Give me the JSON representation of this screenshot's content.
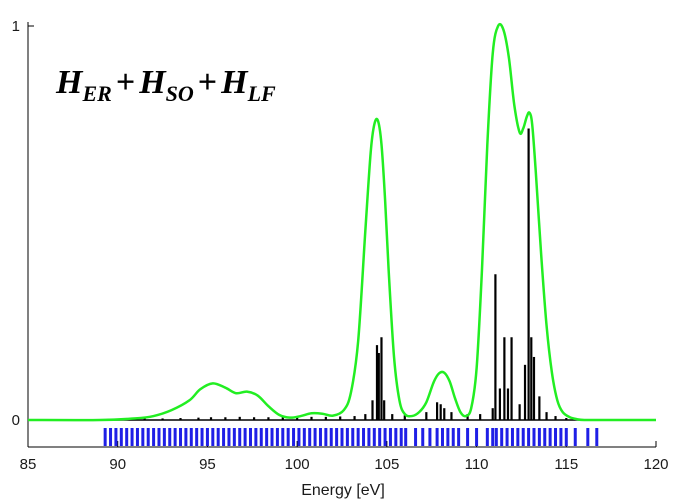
{
  "chart_data": {
    "type": "line",
    "title": "",
    "xlabel": "Energy [eV]",
    "ylabel": "",
    "xlim": [
      85,
      120
    ],
    "ylim": [
      0,
      1
    ],
    "xticks": [
      85,
      90,
      95,
      100,
      105,
      110,
      115,
      120
    ],
    "yticks": [
      0,
      1
    ],
    "grid": false,
    "annotation": {
      "terms": [
        {
          "main": "H",
          "sub": "ER"
        },
        {
          "main": "H",
          "sub": "SO"
        },
        {
          "main": "H",
          "sub": "LF"
        }
      ],
      "operator": "+"
    },
    "series": [
      {
        "kind": "envelope",
        "color": "#22ee22",
        "x": [
          85,
          89,
          91,
          92,
          93,
          94,
          94.6,
          95.3,
          96.0,
          96.6,
          97.2,
          97.8,
          98.4,
          99.0,
          99.6,
          100.2,
          100.8,
          101.4,
          102.0,
          102.6,
          103.0,
          103.4,
          103.8,
          104.1,
          104.3,
          104.5,
          104.7,
          104.9,
          105.1,
          105.4,
          105.7,
          106.0,
          106.4,
          106.8,
          107.2,
          107.6,
          107.9,
          108.2,
          108.5,
          108.8,
          109.1,
          109.4,
          109.7,
          110.0,
          110.3,
          110.6,
          110.9,
          111.2,
          111.5,
          111.8,
          112.1,
          112.4,
          112.6,
          112.8,
          112.95,
          113.1,
          113.3,
          113.6,
          113.9,
          114.2,
          114.5,
          114.8,
          115.2,
          115.6,
          116.0,
          117,
          120
        ],
        "y": [
          0.0,
          0.0,
          0.004,
          0.01,
          0.025,
          0.05,
          0.078,
          0.093,
          0.082,
          0.068,
          0.072,
          0.062,
          0.035,
          0.013,
          0.006,
          0.01,
          0.017,
          0.016,
          0.011,
          0.025,
          0.07,
          0.2,
          0.48,
          0.68,
          0.75,
          0.76,
          0.7,
          0.56,
          0.38,
          0.16,
          0.05,
          0.015,
          0.01,
          0.02,
          0.045,
          0.095,
          0.118,
          0.12,
          0.098,
          0.055,
          0.02,
          0.01,
          0.03,
          0.13,
          0.38,
          0.7,
          0.93,
          1.0,
          0.99,
          0.92,
          0.8,
          0.73,
          0.74,
          0.77,
          0.78,
          0.75,
          0.63,
          0.42,
          0.24,
          0.12,
          0.05,
          0.02,
          0.007,
          0.002,
          0.0,
          0.0,
          0.0
        ]
      },
      {
        "kind": "sticks",
        "color": "#000000",
        "x": [
          89.5,
          90.5,
          91.5,
          92.5,
          93.5,
          94.5,
          95.2,
          96.0,
          96.8,
          97.6,
          98.4,
          99.2,
          100.0,
          100.8,
          101.6,
          102.4,
          103.2,
          103.8,
          104.2,
          104.45,
          104.55,
          104.7,
          104.85,
          105.3,
          106.0,
          107.2,
          107.8,
          108.0,
          108.2,
          108.6,
          109.5,
          110.2,
          110.9,
          111.05,
          111.3,
          111.55,
          111.75,
          111.95,
          112.4,
          112.7,
          112.9,
          113.05,
          113.2,
          113.5,
          113.9,
          114.4,
          115.0
        ],
        "y": [
          0.003,
          0.003,
          0.004,
          0.004,
          0.005,
          0.006,
          0.007,
          0.007,
          0.008,
          0.007,
          0.007,
          0.007,
          0.008,
          0.008,
          0.008,
          0.009,
          0.01,
          0.015,
          0.05,
          0.19,
          0.17,
          0.21,
          0.05,
          0.015,
          0.012,
          0.02,
          0.045,
          0.04,
          0.03,
          0.02,
          0.015,
          0.015,
          0.03,
          0.37,
          0.08,
          0.21,
          0.08,
          0.21,
          0.04,
          0.14,
          0.74,
          0.21,
          0.16,
          0.06,
          0.02,
          0.01,
          0.005
        ]
      },
      {
        "kind": "rug",
        "color": "#1f1fe6",
        "x": [
          89.3,
          89.6,
          89.9,
          90.2,
          90.5,
          90.8,
          91.1,
          91.4,
          91.7,
          92.0,
          92.3,
          92.6,
          92.9,
          93.2,
          93.5,
          93.8,
          94.1,
          94.4,
          94.7,
          95.0,
          95.3,
          95.6,
          95.9,
          96.2,
          96.5,
          96.8,
          97.1,
          97.4,
          97.7,
          98.0,
          98.3,
          98.6,
          98.9,
          99.2,
          99.5,
          99.8,
          100.1,
          100.4,
          100.7,
          101.0,
          101.3,
          101.6,
          101.9,
          102.2,
          102.5,
          102.8,
          103.1,
          103.4,
          103.7,
          104.0,
          104.3,
          104.6,
          104.9,
          105.2,
          105.5,
          105.8,
          106.05,
          106.6,
          107.0,
          107.4,
          107.8,
          108.1,
          108.4,
          108.7,
          109.0,
          109.5,
          110.0,
          110.6,
          110.9,
          111.1,
          111.4,
          111.7,
          112.0,
          112.3,
          112.6,
          112.9,
          113.2,
          113.5,
          113.8,
          114.1,
          114.4,
          114.7,
          115.0,
          115.5,
          116.2,
          116.7
        ]
      }
    ]
  }
}
